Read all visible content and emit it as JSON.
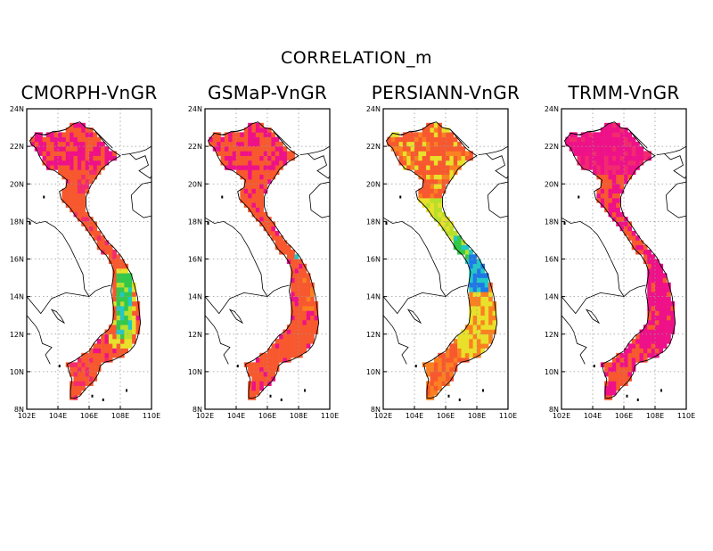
{
  "figure": {
    "title": "CORRELATION_m",
    "panels": [
      {
        "id": "cmorph",
        "title": "CMORPH-VnGR",
        "anomaly": "central-highlands"
      },
      {
        "id": "gsmap",
        "title": "GSMaP-VnGR",
        "anomaly": "mild"
      },
      {
        "id": "persiann",
        "title": "PERSIANN-VnGR",
        "anomaly": "central-coast"
      },
      {
        "id": "trmm",
        "title": "TRMM-VnGR",
        "anomaly": "none"
      }
    ],
    "lat_ticks": [
      "24N",
      "22N",
      "20N",
      "18N",
      "16N",
      "14N",
      "12N",
      "10N",
      "8N"
    ],
    "lon_ticks": [
      "102E",
      "104E",
      "106E",
      "108E",
      "110E"
    ],
    "lon_range": [
      102,
      110
    ],
    "lat_range": [
      8,
      24
    ],
    "colors": {
      "magenta": "#ee1188",
      "deep_pink": "#f22a6e",
      "orange_red": "#f8582e",
      "orange": "#fb8020",
      "yellow": "#e8e02a",
      "yellow_green": "#b8e02a",
      "green": "#32c84a",
      "cyan": "#22c8c8",
      "blue": "#1e78e6"
    }
  }
}
